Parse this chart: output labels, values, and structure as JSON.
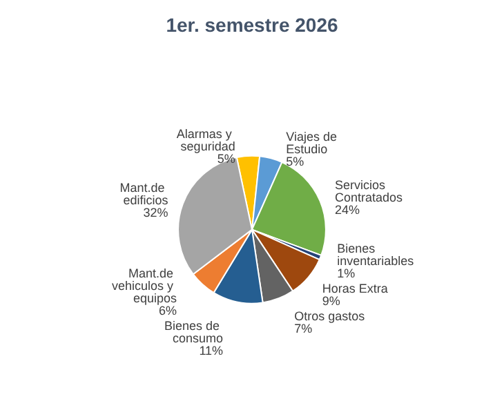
{
  "chart_data": {
    "type": "pie",
    "title": "1er. semestre 2026",
    "categories": [
      "Alarmas y seguridad",
      "Viajes de Estudio",
      "Servicios Contratados",
      "Bienes inventariables",
      "Horas Extra",
      "Otros gastos",
      "Bienes de consumo",
      "Mant.de vehiculos y equipos",
      "Mant.de edificios"
    ],
    "values": [
      5,
      5,
      24,
      1,
      9,
      7,
      11,
      6,
      32
    ],
    "value_labels": [
      "5%",
      "5%",
      "24%",
      "1%",
      "9%",
      "7%",
      "11%",
      "6%",
      "32%"
    ],
    "colors": [
      "#ffc000",
      "#5b9bd5",
      "#70ad47",
      "#264478",
      "#9e480e",
      "#636363",
      "#255e91",
      "#ed7d31",
      "#a5a5a5"
    ],
    "legend": false
  }
}
